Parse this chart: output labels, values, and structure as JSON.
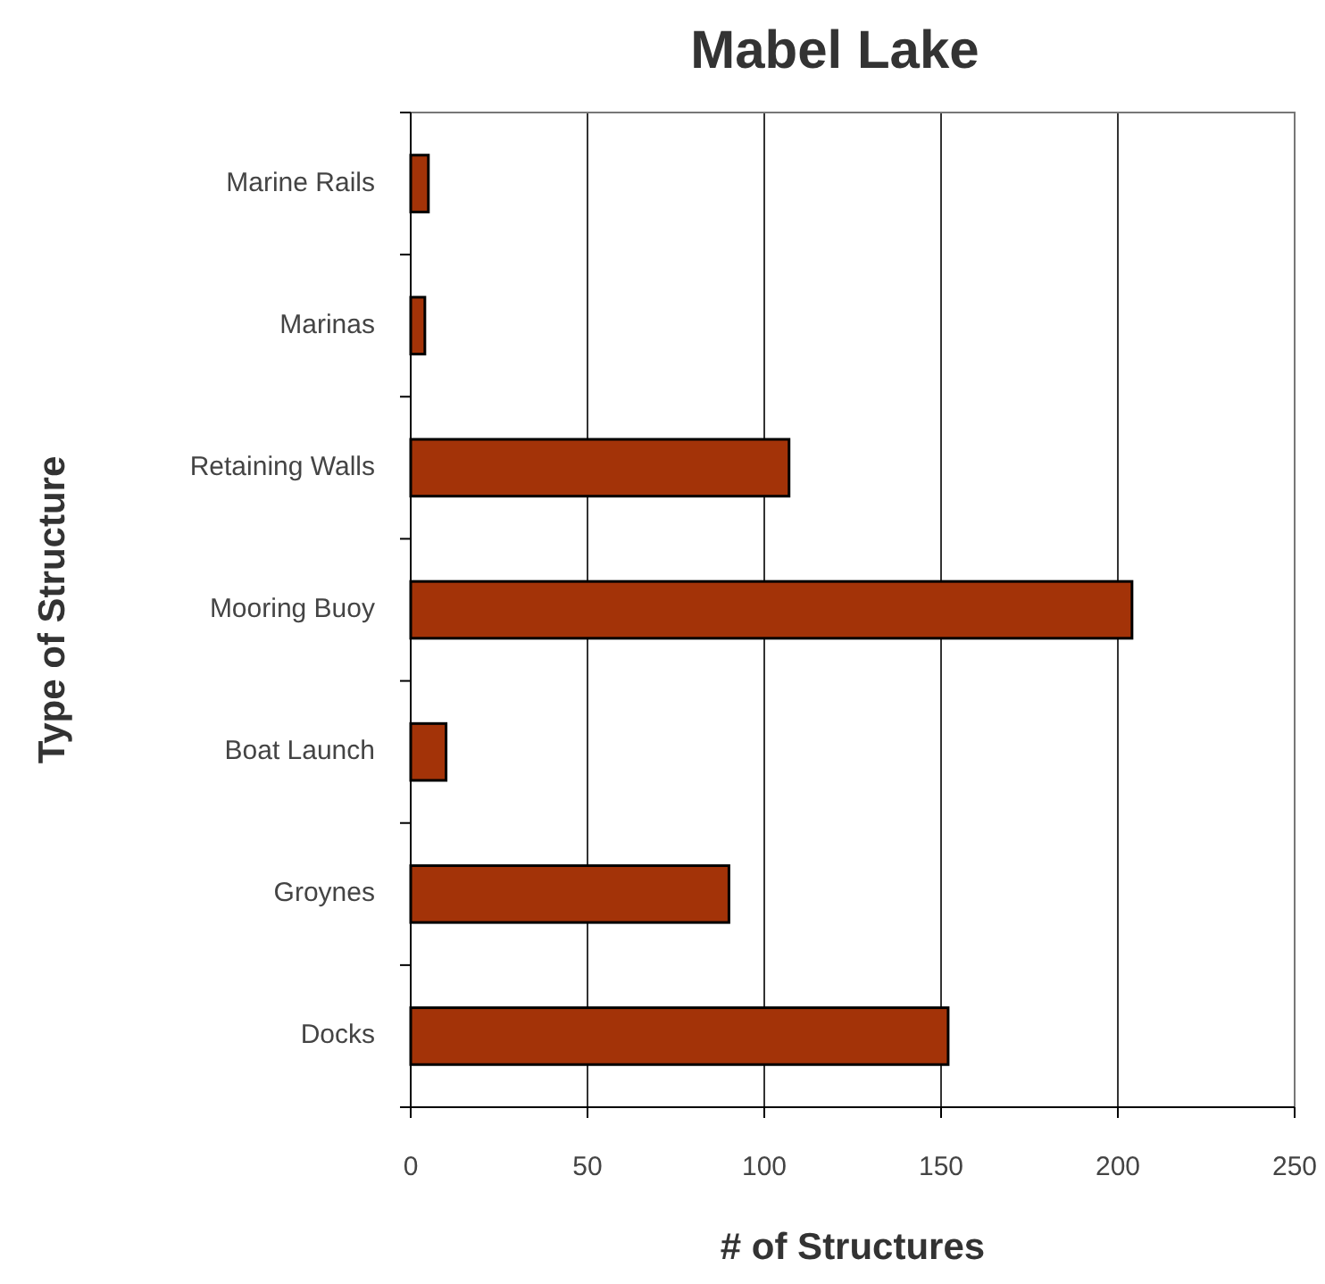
{
  "chart_data": {
    "type": "bar",
    "title": "Mabel Lake",
    "xlabel": "# of Structures",
    "ylabel": "Type of Structure",
    "orientation": "horizontal",
    "categories": [
      "Marine Rails",
      "Marinas",
      "Retaining Walls",
      "Mooring Buoy",
      "Boat Launch",
      "Groynes",
      "Docks"
    ],
    "values": [
      5,
      4,
      107,
      204,
      10,
      90,
      152
    ],
    "color": "#a33308",
    "xlim": [
      0,
      250
    ],
    "xticks": [
      0,
      50,
      100,
      150,
      200,
      250
    ],
    "grid": "x"
  }
}
